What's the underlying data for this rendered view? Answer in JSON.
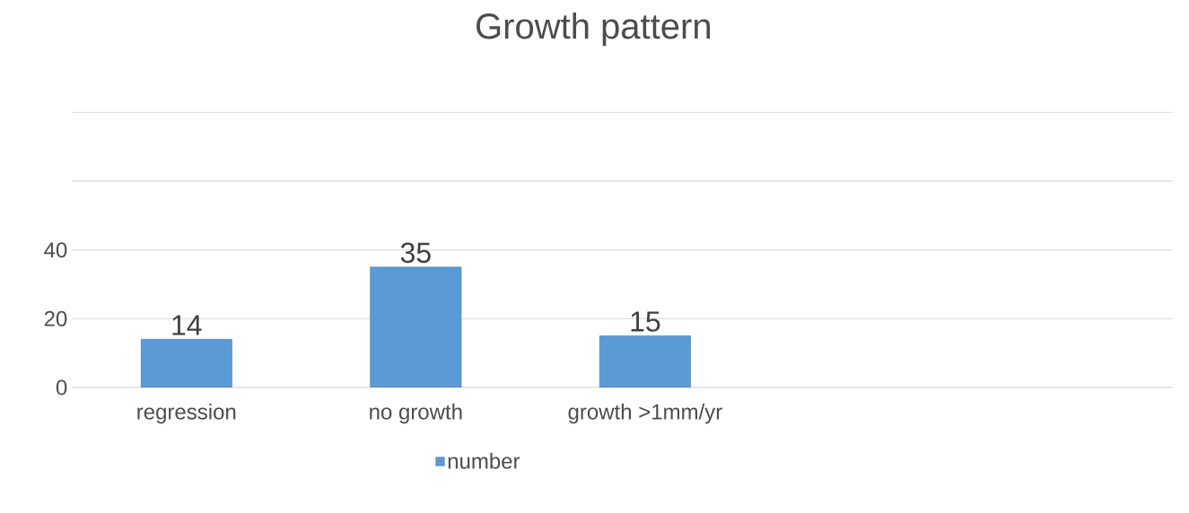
{
  "chart_data": {
    "type": "bar",
    "title": "Growth pattern",
    "categories": [
      "regression",
      "no growth",
      "growth >1mm/yr"
    ],
    "series": [
      {
        "name": "number",
        "color": "#5b9bd5",
        "values": [
          14,
          35,
          15
        ]
      }
    ],
    "ylim": [
      0,
      80
    ],
    "yticks": [
      0,
      20,
      40,
      {
        "value": 60,
        "label": null
      },
      {
        "value": 80,
        "label": null
      }
    ],
    "grid": "y",
    "legend": "bottom",
    "data_labels": true
  }
}
